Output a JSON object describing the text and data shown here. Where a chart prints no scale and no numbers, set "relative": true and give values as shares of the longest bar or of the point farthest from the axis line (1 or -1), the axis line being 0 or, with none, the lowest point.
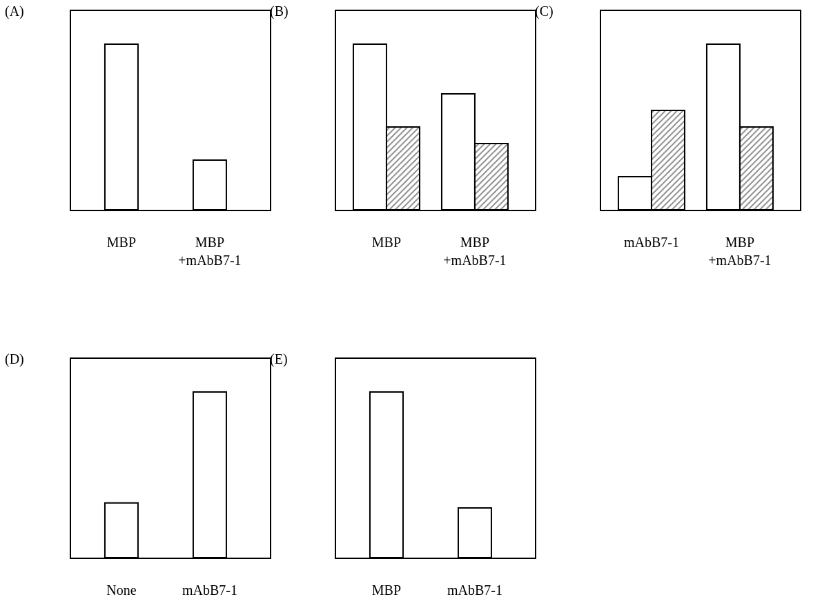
{
  "chart_data": [
    {
      "type": "bar",
      "title": "(A)",
      "categories": [
        "MBP",
        "MBP\n+mAbB7-1"
      ],
      "values": [
        1,
        0.3
      ],
      "color": "#ffffff",
      "relative": true
    },
    {
      "type": "bar",
      "title": "(B)",
      "categories": [
        "MBP",
        "MBP\n+mAbB7-1"
      ],
      "series": [
        {
          "color": "#ffffff",
          "values": [
            1,
            0.7
          ]
        },
        {
          "color": "#000000",
          "values": [
            0.5,
            0.4
          ]
        }
      ],
      "relative": true
    },
    {
      "type": "bar",
      "title": "(C)",
      "categories": [
        "mAbB7-1",
        "MBP\n+mAbB7-1"
      ],
      "series": [
        {
          "color": "#ffffff",
          "values": [
            0.2,
            1
          ]
        },
        {
          "color": "#000000",
          "values": [
            0.6,
            0.5
          ]
        }
      ],
      "relative": true
    },
    {
      "type": "bar",
      "title": "(D)",
      "categories": [
        "None",
        "mAbB7-1"
      ],
      "values": [
        0.33,
        1
      ],
      "color": "#ffffff",
      "relative": true
    },
    {
      "type": "bar",
      "title": "(E)",
      "categories": [
        "MBP",
        "mAbB7-1"
      ],
      "values": [
        1,
        0.3
      ],
      "color": "#ffffff",
      "relative": true
    }
  ]
}
